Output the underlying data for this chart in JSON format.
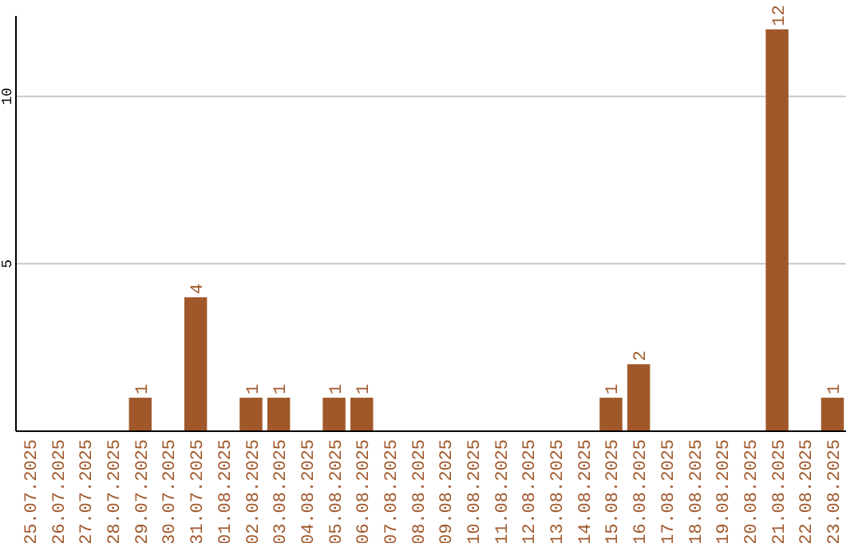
{
  "chart_data": {
    "type": "bar",
    "categories": [
      "25.07.2025",
      "26.07.2025",
      "27.07.2025",
      "28.07.2025",
      "29.07.2025",
      "30.07.2025",
      "31.07.2025",
      "01.08.2025",
      "02.08.2025",
      "03.08.2025",
      "04.08.2025",
      "05.08.2025",
      "06.08.2025",
      "07.08.2025",
      "08.08.2025",
      "09.08.2025",
      "10.08.2025",
      "11.08.2025",
      "12.08.2025",
      "13.08.2025",
      "14.08.2025",
      "15.08.2025",
      "16.08.2025",
      "17.08.2025",
      "18.08.2025",
      "19.08.2025",
      "20.08.2025",
      "21.08.2025",
      "22.08.2025",
      "23.08.2025"
    ],
    "values": [
      0,
      0,
      0,
      0,
      1,
      0,
      4,
      0,
      1,
      1,
      0,
      1,
      1,
      0,
      0,
      0,
      0,
      0,
      0,
      0,
      0,
      1,
      2,
      0,
      0,
      0,
      0,
      12,
      0,
      1
    ],
    "value_labels": [
      null,
      null,
      null,
      null,
      "1",
      null,
      "4",
      null,
      "1",
      "1",
      null,
      "1",
      "1",
      null,
      null,
      null,
      null,
      null,
      null,
      null,
      null,
      "1",
      "2",
      null,
      null,
      null,
      null,
      "12",
      null,
      "1"
    ],
    "color": "#a0582a",
    "ylim": [
      0,
      12.4
    ],
    "yticks": [
      5,
      10
    ],
    "grid": "y"
  }
}
